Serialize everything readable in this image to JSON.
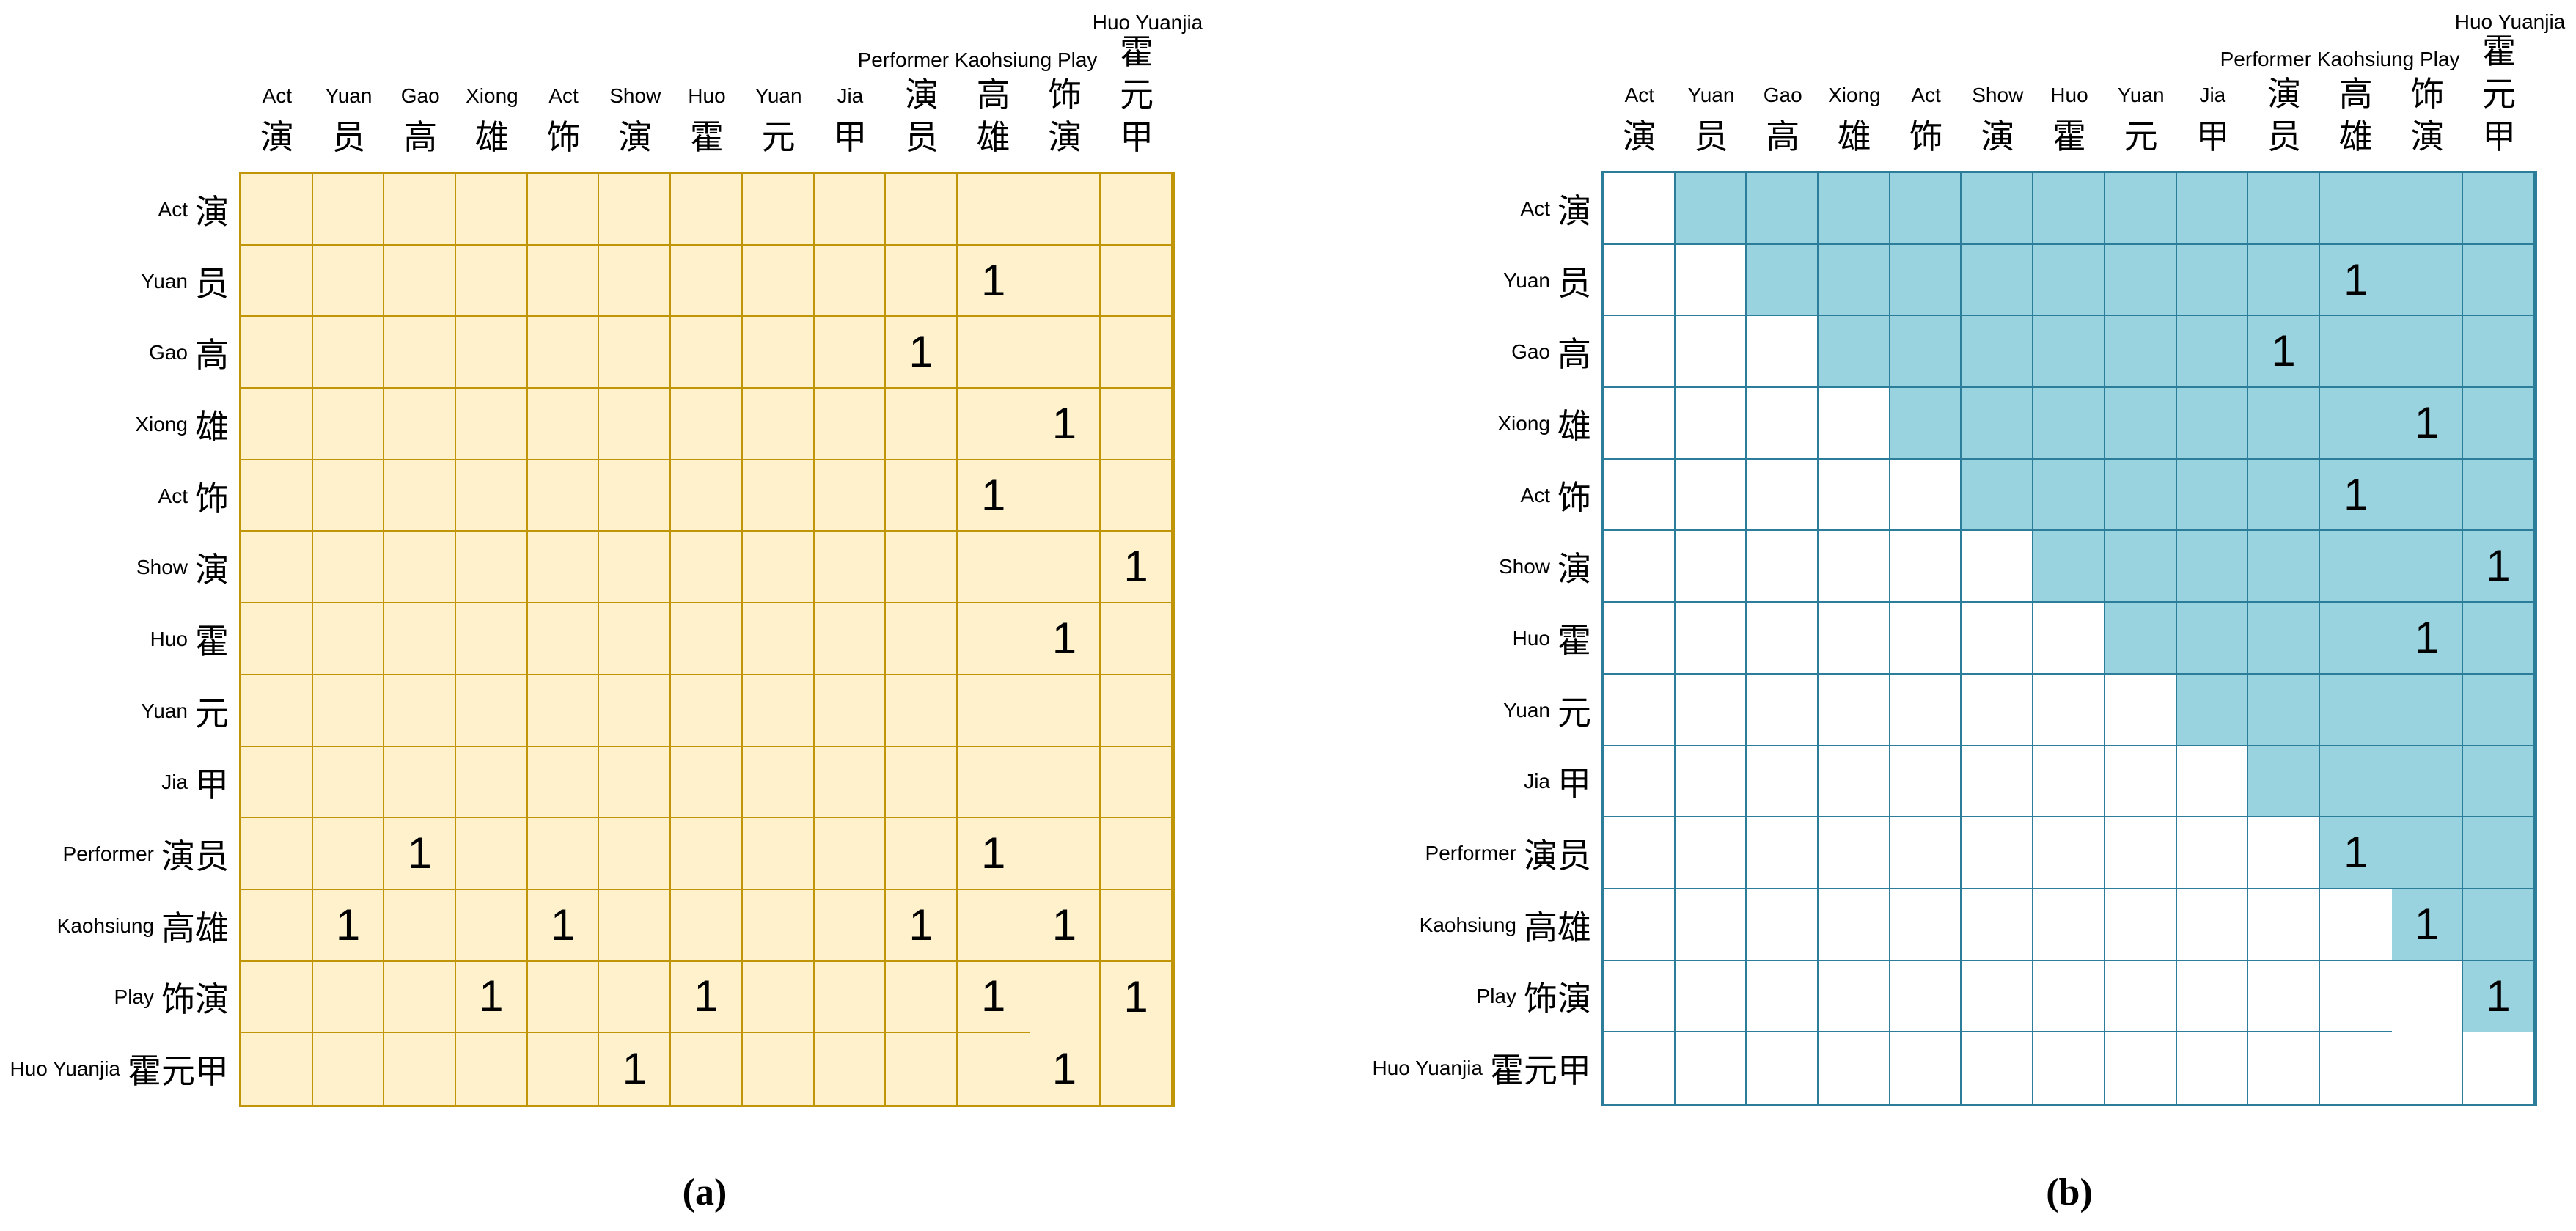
{
  "captions": {
    "a": "(a)",
    "b": "(b)"
  },
  "header_overlays": {
    "group_label": "Performer Kaohsiung Play",
    "last_label": "Huo Yuanjia"
  },
  "terms": [
    {
      "en": "Act",
      "zh": "演"
    },
    {
      "en": "Yuan",
      "zh": "员"
    },
    {
      "en": "Gao",
      "zh": "高"
    },
    {
      "en": "Xiong",
      "zh": "雄"
    },
    {
      "en": "Act",
      "zh": "饰"
    },
    {
      "en": "Show",
      "zh": "演"
    },
    {
      "en": "Huo",
      "zh": "霍"
    },
    {
      "en": "Yuan",
      "zh": "元"
    },
    {
      "en": "Jia",
      "zh": "甲"
    },
    {
      "en": "Performer",
      "zh": "演员"
    },
    {
      "en": "Kaohsiung",
      "zh": "高雄"
    },
    {
      "en": "Play",
      "zh": "饰演"
    },
    {
      "en": "Huo Yuanjia",
      "zh": "霍元甲"
    }
  ],
  "colors": {
    "matrix_a_fill": "#FEF1CC",
    "matrix_a_border": "#C09508",
    "matrix_b_fill_shaded": "#9AD3E0",
    "matrix_b_fill_empty": "#FFFFFF",
    "matrix_b_border": "#2B7D99",
    "value_text": "#000000"
  },
  "chart_data": [
    {
      "type": "heatmap",
      "title": "(a)",
      "description": "Symmetric term co-occurrence matrix; all cells cream, value 1 marks co-occurrence",
      "labels": [
        "Act 演",
        "Yuan 员",
        "Gao 高",
        "Xiong 雄",
        "Act 饰",
        "Show 演",
        "Huo 霍",
        "Yuan 元",
        "Jia 甲",
        "Performer 演员",
        "Kaohsiung 高雄",
        "Play 饰演",
        "Huo Yuanjia 霍元甲"
      ],
      "matrix": [
        [
          0,
          0,
          0,
          0,
          0,
          0,
          0,
          0,
          0,
          0,
          0,
          0,
          0
        ],
        [
          0,
          0,
          0,
          0,
          0,
          0,
          0,
          0,
          0,
          0,
          1,
          0,
          0
        ],
        [
          0,
          0,
          0,
          0,
          0,
          0,
          0,
          0,
          0,
          1,
          0,
          0,
          0
        ],
        [
          0,
          0,
          0,
          0,
          0,
          0,
          0,
          0,
          0,
          0,
          0,
          1,
          0
        ],
        [
          0,
          0,
          0,
          0,
          0,
          0,
          0,
          0,
          0,
          0,
          1,
          0,
          0
        ],
        [
          0,
          0,
          0,
          0,
          0,
          0,
          0,
          0,
          0,
          0,
          0,
          0,
          1
        ],
        [
          0,
          0,
          0,
          0,
          0,
          0,
          0,
          0,
          0,
          0,
          0,
          1,
          0
        ],
        [
          0,
          0,
          0,
          0,
          0,
          0,
          0,
          0,
          0,
          0,
          0,
          0,
          0
        ],
        [
          0,
          0,
          0,
          0,
          0,
          0,
          0,
          0,
          0,
          0,
          0,
          0,
          0
        ],
        [
          0,
          0,
          1,
          0,
          0,
          0,
          0,
          0,
          0,
          0,
          1,
          0,
          0
        ],
        [
          0,
          1,
          0,
          0,
          1,
          0,
          0,
          0,
          0,
          1,
          0,
          1,
          0
        ],
        [
          0,
          0,
          0,
          1,
          0,
          0,
          1,
          0,
          0,
          0,
          1,
          0,
          1
        ],
        [
          0,
          0,
          0,
          0,
          0,
          1,
          0,
          0,
          0,
          0,
          0,
          1,
          0
        ]
      ]
    },
    {
      "type": "heatmap",
      "title": "(b)",
      "description": "Upper-triangular matrix; strictly upper-triangle cells shaded blue, lower triangle and diagonal white",
      "labels": [
        "Act 演",
        "Yuan 员",
        "Gao 高",
        "Xiong 雄",
        "Act 饰",
        "Show 演",
        "Huo 霍",
        "Yuan 元",
        "Jia 甲",
        "Performer 演员",
        "Kaohsiung 高雄",
        "Play 饰演",
        "Huo Yuanjia 霍元甲"
      ],
      "shading_rule": "shaded if column index > row index",
      "matrix": [
        [
          0,
          0,
          0,
          0,
          0,
          0,
          0,
          0,
          0,
          0,
          0,
          0,
          0
        ],
        [
          0,
          0,
          0,
          0,
          0,
          0,
          0,
          0,
          0,
          0,
          1,
          0,
          0
        ],
        [
          0,
          0,
          0,
          0,
          0,
          0,
          0,
          0,
          0,
          1,
          0,
          0,
          0
        ],
        [
          0,
          0,
          0,
          0,
          0,
          0,
          0,
          0,
          0,
          0,
          0,
          1,
          0
        ],
        [
          0,
          0,
          0,
          0,
          0,
          0,
          0,
          0,
          0,
          0,
          1,
          0,
          0
        ],
        [
          0,
          0,
          0,
          0,
          0,
          0,
          0,
          0,
          0,
          0,
          0,
          0,
          1
        ],
        [
          0,
          0,
          0,
          0,
          0,
          0,
          0,
          0,
          0,
          0,
          0,
          1,
          0
        ],
        [
          0,
          0,
          0,
          0,
          0,
          0,
          0,
          0,
          0,
          0,
          0,
          0,
          0
        ],
        [
          0,
          0,
          0,
          0,
          0,
          0,
          0,
          0,
          0,
          0,
          0,
          0,
          0
        ],
        [
          0,
          0,
          0,
          0,
          0,
          0,
          0,
          0,
          0,
          0,
          1,
          0,
          0
        ],
        [
          0,
          0,
          0,
          0,
          0,
          0,
          0,
          0,
          0,
          0,
          0,
          1,
          0
        ],
        [
          0,
          0,
          0,
          0,
          0,
          0,
          0,
          0,
          0,
          0,
          0,
          0,
          1
        ],
        [
          0,
          0,
          0,
          0,
          0,
          0,
          0,
          0,
          0,
          0,
          0,
          0,
          0
        ]
      ]
    }
  ]
}
